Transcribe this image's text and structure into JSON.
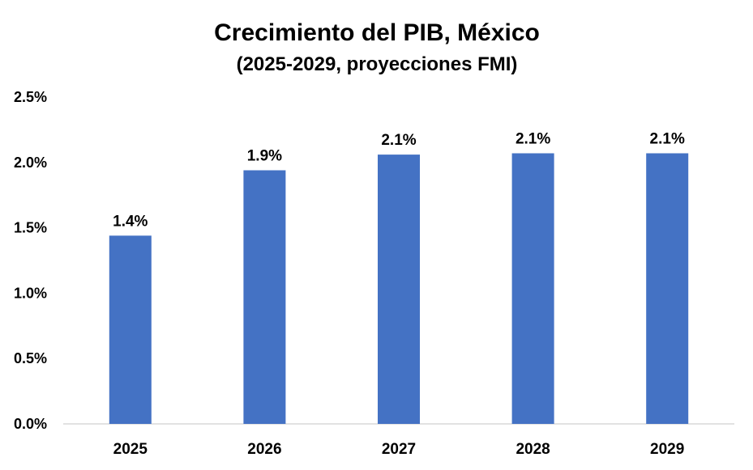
{
  "chart_data": {
    "type": "bar",
    "title": "Crecimiento del PIB, México",
    "subtitle": "(2025-2029, proyecciones FMI)",
    "categories": [
      "2025",
      "2026",
      "2027",
      "2028",
      "2029"
    ],
    "values": [
      1.44,
      1.94,
      2.06,
      2.07,
      2.07
    ],
    "data_labels": [
      "1.4%",
      "1.9%",
      "2.1%",
      "2.1%",
      "2.1%"
    ],
    "y_ticks": [
      0,
      0.5,
      1.0,
      1.5,
      2.0,
      2.5
    ],
    "y_tick_labels": [
      "0.0%",
      "0.5%",
      "1.0%",
      "1.5%",
      "2.0%",
      "2.5%"
    ],
    "ylim": [
      0,
      2.5
    ],
    "grid": false,
    "legend": "none",
    "bar_color": "#4472C4"
  }
}
